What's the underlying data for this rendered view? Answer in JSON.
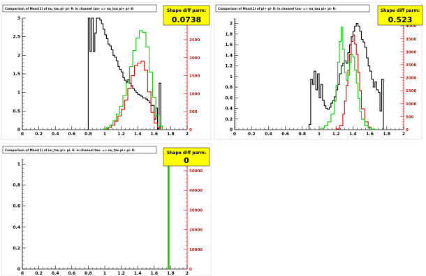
{
  "chart_data": [
    {
      "type": "line",
      "title": "Comparison of Mass(1) of nu_tau pi- pi- K- in channel tau- => nu_tau pi+ pi- K-",
      "badge": {
        "label": "Shape diff parm:",
        "value": "0.0738"
      },
      "x_ticks": [
        "0",
        "0.2",
        "0.4",
        "0.6",
        "0.8",
        "1",
        "1.2",
        "1.4",
        "1.6",
        "1.8",
        "2"
      ],
      "xlim": [
        0,
        2
      ],
      "left_axis": {
        "ylim": [
          0,
          3
        ],
        "ticks": [
          "0",
          "0.5",
          "1",
          "1.5",
          "2",
          "2.5",
          "3"
        ]
      },
      "right_axis": {
        "ylim": [
          0,
          3100
        ],
        "ticks": [
          "0",
          "500",
          "1000",
          "1500",
          "2000",
          "2500",
          "3000"
        ]
      },
      "series": [
        {
          "color": "#000000",
          "axis": "left",
          "x": [
            0.78,
            0.8,
            0.82,
            0.84,
            0.86,
            0.88,
            0.9,
            0.92,
            0.94,
            0.96,
            0.98,
            1.0,
            1.02,
            1.04,
            1.06,
            1.08,
            1.1,
            1.12,
            1.14,
            1.16,
            1.18,
            1.2,
            1.22,
            1.24,
            1.26,
            1.28,
            1.3,
            1.32,
            1.34,
            1.36,
            1.38,
            1.4,
            1.42,
            1.44,
            1.46,
            1.48,
            1.5,
            1.52,
            1.54,
            1.56,
            1.58,
            1.6,
            1.62,
            1.64,
            1.66,
            1.68
          ],
          "y": [
            0,
            3.0,
            2.1,
            3.0,
            2.1,
            2.6,
            3.0,
            3.0,
            2.95,
            2.85,
            2.7,
            2.55,
            2.45,
            2.3,
            2.25,
            2.15,
            2.0,
            1.95,
            1.85,
            1.7,
            1.62,
            1.55,
            1.4,
            1.33,
            1.28,
            1.35,
            1.25,
            1.18,
            1.1,
            1.05,
            1.0,
            0.95,
            0.93,
            0.9,
            0.85,
            0.85,
            0.82,
            0.78,
            0.72,
            0.65,
            0.65,
            0.28,
            0.58,
            0.02,
            1.25,
            0
          ]
        },
        {
          "color": "#dd0000",
          "axis": "right",
          "x": [
            1.0,
            1.04,
            1.08,
            1.12,
            1.16,
            1.2,
            1.24,
            1.28,
            1.32,
            1.36,
            1.4,
            1.44,
            1.48,
            1.52,
            1.56,
            1.6,
            1.64,
            1.68
          ],
          "y": [
            20,
            60,
            120,
            230,
            380,
            560,
            820,
            1150,
            1500,
            1780,
            1850,
            1900,
            1650,
            1050,
            480,
            180,
            50,
            0
          ]
        },
        {
          "color": "#00cc00",
          "axis": "right",
          "x": [
            0.98,
            1.02,
            1.06,
            1.1,
            1.14,
            1.18,
            1.22,
            1.26,
            1.3,
            1.34,
            1.38,
            1.42,
            1.46,
            1.5,
            1.54,
            1.58,
            1.62,
            1.66,
            1.7
          ],
          "y": [
            20,
            60,
            130,
            250,
            430,
            650,
            950,
            1300,
            1750,
            2200,
            2550,
            2750,
            2700,
            2300,
            1600,
            900,
            400,
            100,
            0
          ]
        }
      ]
    },
    {
      "type": "line",
      "title": "Comparison of Mass(1) of pi+ pi- K- in channel tau- => nu_tau pi+ pi- K-",
      "badge": {
        "label": "Shape diff parm:",
        "value": "0.523"
      },
      "x_ticks": [
        "0",
        "0.2",
        "0.4",
        "0.6",
        "0.8",
        "1",
        "1.2",
        "1.4",
        "1.6",
        "1.8",
        "2"
      ],
      "xlim": [
        0,
        2
      ],
      "left_axis": {
        "ylim": [
          0,
          2.1
        ],
        "ticks": [
          "0",
          "0.2",
          "0.4",
          "0.6",
          "0.8",
          "1",
          "1.2",
          "1.4",
          "1.6",
          "1.8",
          "2"
        ]
      },
      "right_axis": {
        "ylim": [
          0,
          4300
        ],
        "ticks": [
          "0",
          "500",
          "1000",
          "1500",
          "2000",
          "2500",
          "3000",
          "3500",
          "4000"
        ]
      },
      "series": [
        {
          "color": "#000000",
          "axis": "left",
          "x": [
            0.88,
            0.9,
            0.92,
            0.94,
            0.96,
            0.98,
            1.0,
            1.02,
            1.04,
            1.06,
            1.08,
            1.1,
            1.12,
            1.14,
            1.16,
            1.18,
            1.2,
            1.22,
            1.24,
            1.26,
            1.28,
            1.3,
            1.32,
            1.34,
            1.36,
            1.38,
            1.4,
            1.42,
            1.44,
            1.46,
            1.48,
            1.5,
            1.52,
            1.54,
            1.56,
            1.58,
            1.6,
            1.62,
            1.64,
            1.66,
            1.68,
            1.7,
            1.72,
            1.74,
            1.76
          ],
          "y": [
            0.1,
            0.95,
            0.85,
            1.1,
            0.75,
            1.05,
            0.6,
            0.85,
            0.55,
            0.45,
            0.4,
            0.38,
            0.42,
            0.5,
            0.55,
            0.62,
            0.75,
            0.85,
            1.05,
            1.2,
            1.25,
            1.3,
            1.25,
            1.45,
            1.6,
            1.75,
            1.85,
            1.95,
            2.0,
            1.95,
            1.85,
            1.7,
            1.65,
            1.55,
            1.35,
            1.2,
            1.1,
            0.95,
            0.8,
            0.9,
            0.75,
            0.7,
            0.35,
            0.95,
            0
          ]
        },
        {
          "color": "#dd0000",
          "axis": "right",
          "x": [
            1.2,
            1.24,
            1.28,
            1.3,
            1.32,
            1.34,
            1.36,
            1.38,
            1.4,
            1.42,
            1.44,
            1.46,
            1.48,
            1.5,
            1.54,
            1.58,
            1.62
          ],
          "y": [
            30,
            150,
            600,
            1100,
            1700,
            2300,
            2900,
            3400,
            3650,
            3300,
            2900,
            2200,
            1500,
            800,
            300,
            80,
            0
          ]
        },
        {
          "color": "#00cc00",
          "axis": "right",
          "x": [
            1.02,
            1.06,
            1.1,
            1.14,
            1.18,
            1.2,
            1.22,
            1.24,
            1.26,
            1.28,
            1.3,
            1.32,
            1.34,
            1.36,
            1.38,
            1.4,
            1.42,
            1.44,
            1.46,
            1.48,
            1.5,
            1.54,
            1.58,
            1.62,
            1.66
          ],
          "y": [
            50,
            150,
            300,
            600,
            1100,
            1700,
            2600,
            3400,
            3950,
            3100,
            2200,
            1900,
            2100,
            2600,
            2900,
            2800,
            2300,
            1800,
            1200,
            700,
            400,
            150,
            60,
            20,
            0
          ]
        }
      ]
    },
    {
      "type": "line",
      "title": "Comparison of Mass(1) of nu_tau pi+ pi- K- in channel tau- => nu_tau pi+ pi- K-",
      "badge": {
        "label": "Shape diff parm:",
        "value": "0"
      },
      "x_ticks": [
        "0",
        "0.2",
        "0.4",
        "0.6",
        "0.8",
        "1",
        "1.2",
        "1.4",
        "1.6",
        "1.8",
        "2"
      ],
      "xlim": [
        0,
        2
      ],
      "left_axis": {
        "ylim": [
          0,
          1.05
        ],
        "ticks": [
          "0",
          "0.2",
          "0.4",
          "0.6",
          "0.8",
          "1"
        ]
      },
      "right_axis": {
        "ylim": [
          0,
          56000
        ],
        "ticks": [
          "0",
          "10000",
          "20000",
          "30000",
          "40000",
          "50000"
        ]
      },
      "series": [
        {
          "color": "#000000",
          "axis": "left",
          "x": [
            1.77,
            1.78
          ],
          "y": [
            1.0,
            0
          ]
        },
        {
          "color": "#dd0000",
          "axis": "left",
          "x": [
            1.77,
            1.78
          ],
          "y": [
            1.0,
            0
          ]
        },
        {
          "color": "#00cc00",
          "axis": "left",
          "x": [
            1.77,
            1.78
          ],
          "y": [
            1.0,
            0
          ]
        }
      ]
    }
  ]
}
